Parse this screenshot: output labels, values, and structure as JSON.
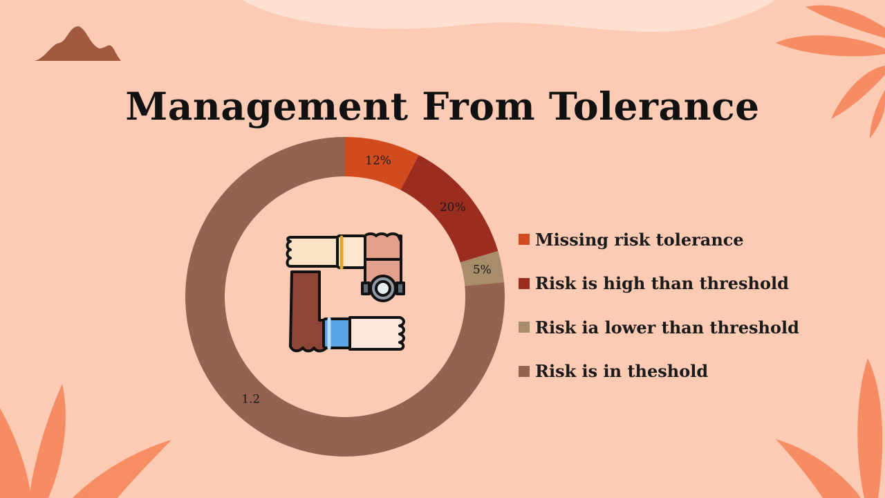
{
  "slide": {
    "title": "Management From Tolerance",
    "background_color": "#fdcbb4",
    "icons": [
      "mountain-icon",
      "leaf-icon",
      "hands-together-icon"
    ]
  },
  "chart_data": {
    "type": "pie",
    "variant": "donut",
    "categories": [
      "Missing risk tolerance",
      "Risk is high than threshold",
      "Risk ia lower than threshold",
      "Risk is in theshold"
    ],
    "values": [
      0.12,
      0.2,
      0.05,
      1.2
    ],
    "data_labels": [
      "12%",
      "20%",
      "5%",
      "1.2"
    ],
    "colors": [
      "#d14b1f",
      "#9b2c20",
      "#a88d6b",
      "#956252"
    ],
    "legend_position": "right"
  }
}
